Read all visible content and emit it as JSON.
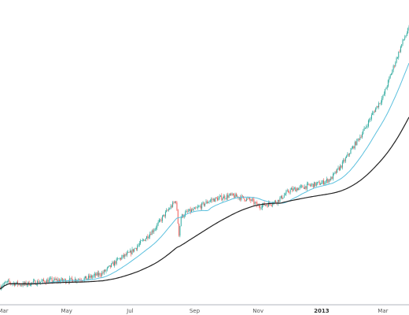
{
  "chart_data": {
    "type": "candlestick",
    "xlabel": "",
    "ylabel": "",
    "x_ticks": [
      {
        "label": "Mar",
        "date": "2012-03-01",
        "bold": false
      },
      {
        "label": "May",
        "date": "2012-05-01",
        "bold": false
      },
      {
        "label": "Jul",
        "date": "2012-07-01",
        "bold": false
      },
      {
        "label": "Sep",
        "date": "2012-09-01",
        "bold": false
      },
      {
        "label": "Nov",
        "date": "2012-11-01",
        "bold": false
      },
      {
        "label": "2013",
        "date": "2013-01-01",
        "bold": true
      },
      {
        "label": "Mar",
        "date": "2013-03-01",
        "bold": false
      }
    ],
    "xlim": [
      "2012-02-27",
      "2013-03-26"
    ],
    "ylim": [
      0,
      30
    ],
    "grid": false,
    "y_axis_visible": false,
    "colors": {
      "up": "#26a69a",
      "down": "#ef5350",
      "ma_short": "#5bc0de",
      "ma_long": "#222222",
      "axis": "#b2b5be"
    },
    "price_anchors": [
      {
        "date": "2012-02-27",
        "value": 4.7
      },
      {
        "date": "2012-03-05",
        "value": 4.9
      },
      {
        "date": "2012-03-20",
        "value": 4.8
      },
      {
        "date": "2012-04-01",
        "value": 4.9
      },
      {
        "date": "2012-04-15",
        "value": 5.0
      },
      {
        "date": "2012-05-01",
        "value": 5.0
      },
      {
        "date": "2012-05-20",
        "value": 5.1
      },
      {
        "date": "2012-06-05",
        "value": 5.4
      },
      {
        "date": "2012-06-20",
        "value": 6.2
      },
      {
        "date": "2012-07-01",
        "value": 6.6
      },
      {
        "date": "2012-07-15",
        "value": 7.6
      },
      {
        "date": "2012-07-25",
        "value": 8.5
      },
      {
        "date": "2012-08-05",
        "value": 10.0
      },
      {
        "date": "2012-08-14",
        "value": 11.2
      },
      {
        "date": "2012-08-17",
        "value": 8.0
      },
      {
        "date": "2012-08-19",
        "value": 9.5
      },
      {
        "date": "2012-08-25",
        "value": 10.0
      },
      {
        "date": "2012-09-01",
        "value": 10.2
      },
      {
        "date": "2012-09-15",
        "value": 11.2
      },
      {
        "date": "2012-09-25",
        "value": 11.5
      },
      {
        "date": "2012-10-05",
        "value": 11.8
      },
      {
        "date": "2012-10-15",
        "value": 11.6
      },
      {
        "date": "2012-10-26",
        "value": 11.2
      },
      {
        "date": "2012-11-01",
        "value": 10.6
      },
      {
        "date": "2012-11-10",
        "value": 10.8
      },
      {
        "date": "2012-11-20",
        "value": 11.2
      },
      {
        "date": "2012-12-01",
        "value": 12.4
      },
      {
        "date": "2012-12-15",
        "value": 12.9
      },
      {
        "date": "2013-01-01",
        "value": 13.4
      },
      {
        "date": "2013-01-10",
        "value": 14.0
      },
      {
        "date": "2013-01-20",
        "value": 16.0
      },
      {
        "date": "2013-02-01",
        "value": 19.5
      },
      {
        "date": "2013-02-10",
        "value": 22.5
      },
      {
        "date": "2013-02-20",
        "value": 27.5
      },
      {
        "date": "2013-03-01",
        "value": 32.0
      },
      {
        "date": "2013-03-10",
        "value": 42.0
      },
      {
        "date": "2013-03-20",
        "value": 56.0
      },
      {
        "date": "2013-03-26",
        "value": 64.0
      }
    ]
  }
}
